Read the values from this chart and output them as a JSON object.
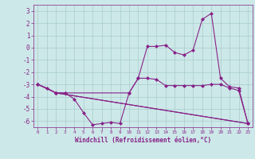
{
  "xlabel": "Windchill (Refroidissement éolien,°C)",
  "background_color": "#cce8e8",
  "grid_color": "#aacccc",
  "line_color": "#882288",
  "marker": "D",
  "markersize": 2.0,
  "linewidth": 0.8,
  "xlim": [
    -0.5,
    23.5
  ],
  "ylim": [
    -6.5,
    3.5
  ],
  "yticks": [
    -6,
    -5,
    -4,
    -3,
    -2,
    -1,
    0,
    1,
    2,
    3
  ],
  "xticks": [
    0,
    1,
    2,
    3,
    4,
    5,
    6,
    7,
    8,
    9,
    10,
    11,
    12,
    13,
    14,
    15,
    16,
    17,
    18,
    19,
    20,
    21,
    22,
    23
  ],
  "series": [
    {
      "x": [
        0,
        1,
        2,
        3,
        4,
        5,
        6,
        7,
        8,
        9,
        10,
        11,
        12,
        13,
        14,
        15,
        16,
        17,
        18,
        19,
        20,
        21,
        22,
        23
      ],
      "y": [
        -3.0,
        -3.3,
        -3.7,
        -3.7,
        -4.2,
        -5.3,
        -6.3,
        -6.2,
        -6.1,
        -6.2,
        -3.7,
        -2.5,
        -2.5,
        -2.6,
        -3.1,
        -3.1,
        -3.1,
        -3.1,
        -3.1,
        -3.0,
        -3.0,
        -3.3,
        -3.5,
        -6.2
      ]
    },
    {
      "x": [
        0,
        2,
        3,
        10,
        11,
        12,
        13,
        14,
        15,
        16,
        17,
        18,
        19,
        20,
        21,
        22,
        23
      ],
      "y": [
        -3.0,
        -3.7,
        -3.7,
        -3.7,
        -2.5,
        0.1,
        0.1,
        0.2,
        -0.4,
        -0.6,
        -0.2,
        2.3,
        2.8,
        -2.5,
        -3.2,
        -3.3,
        -6.2
      ]
    },
    {
      "x": [
        0,
        2,
        23
      ],
      "y": [
        -3.0,
        -3.7,
        -6.2
      ]
    },
    {
      "x": [
        2,
        23
      ],
      "y": [
        -3.7,
        -6.2
      ]
    }
  ]
}
